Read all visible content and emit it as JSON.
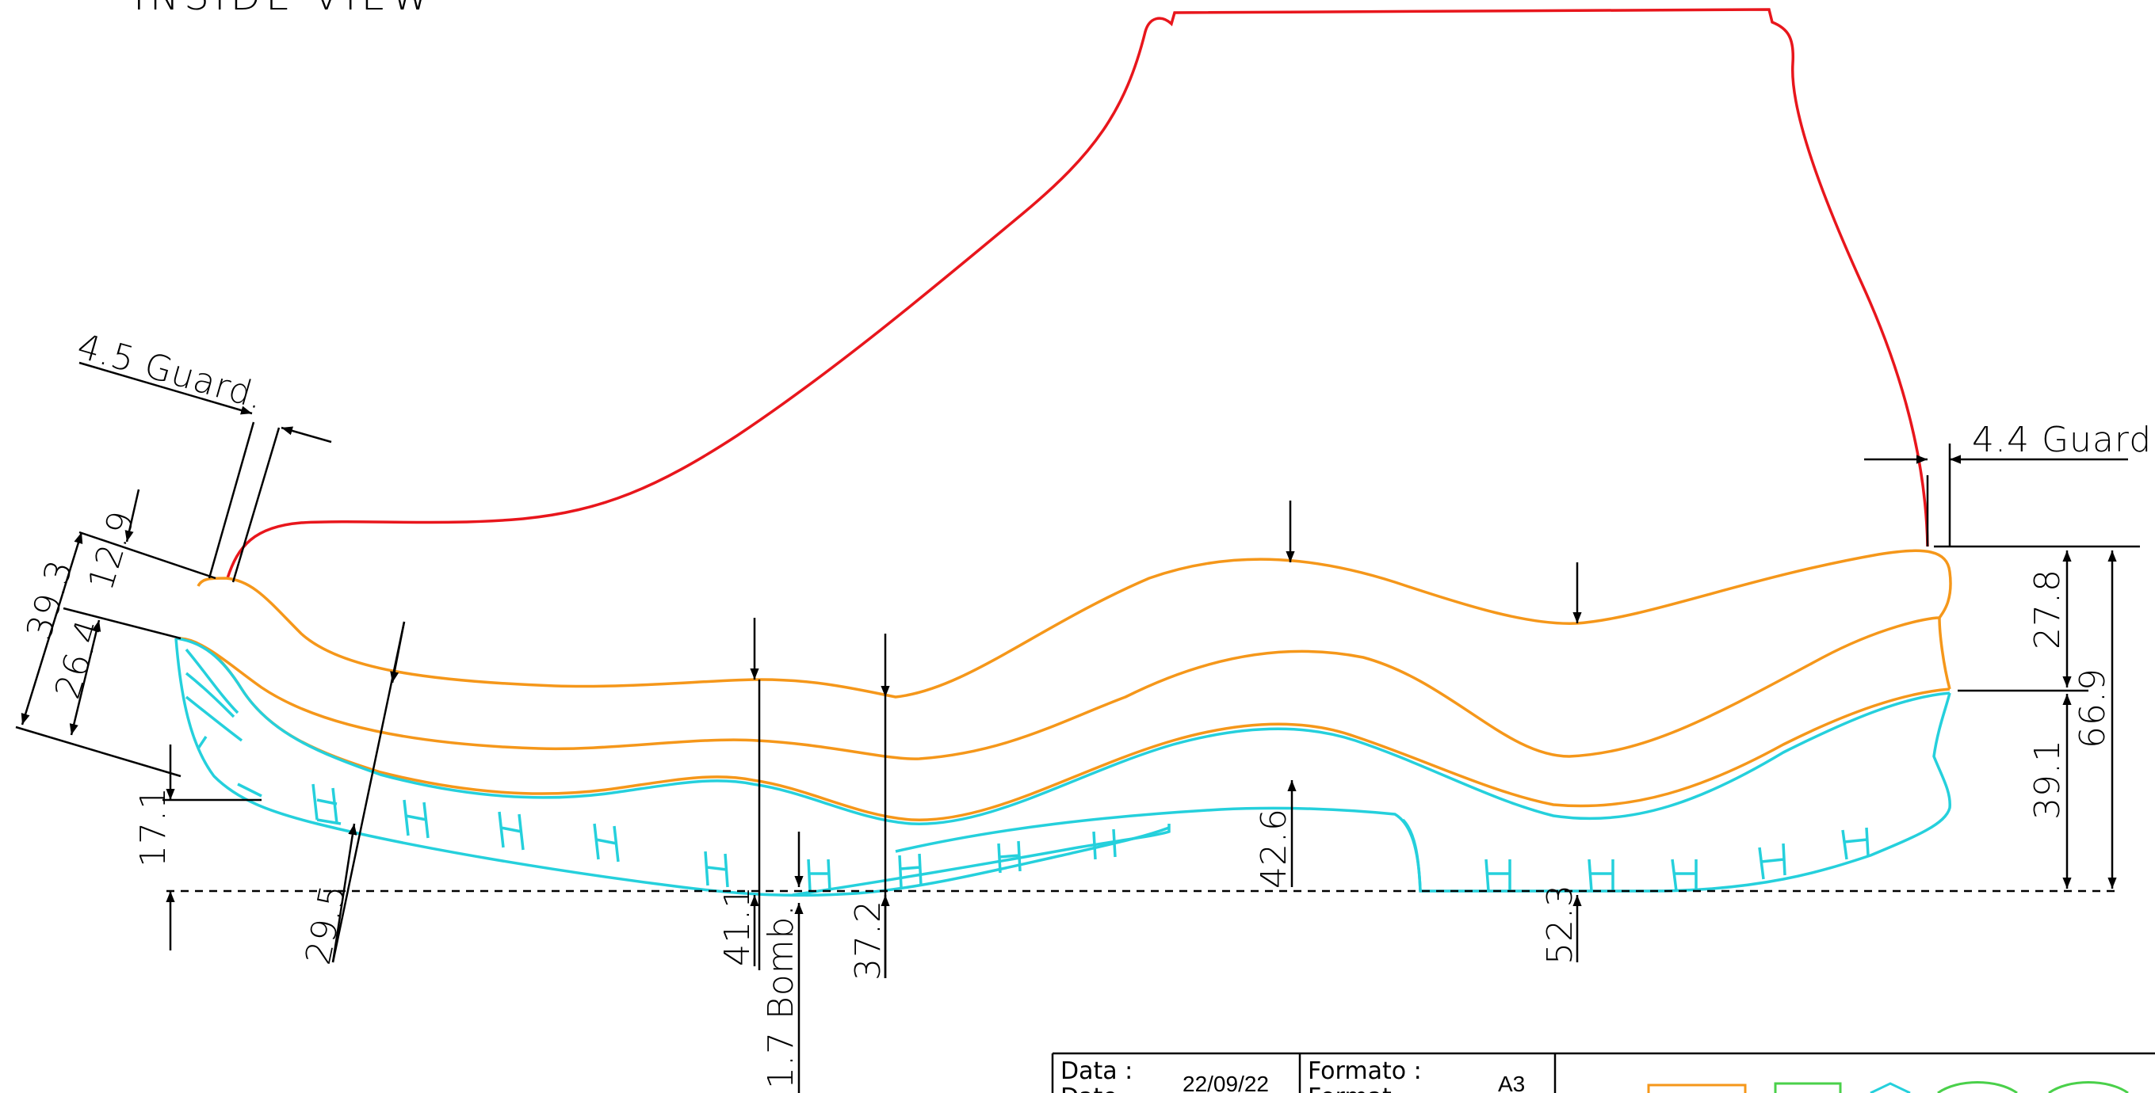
{
  "title": "INSIDE VIEW",
  "colors": {
    "upper": "#e8161c",
    "insole_midsole": "#f5971a",
    "outsole": "#25d0dc",
    "dimension": "#000000"
  },
  "dimensions": {
    "toe_guard": "4.5 Guard.",
    "heel_guard": "4.4 Guard.",
    "toe_total_height": "39.3",
    "toe_upper_height": "12.9",
    "toe_lower_height": "26.4",
    "toe_spring": "17.1",
    "toe_thickness": "29.5",
    "ball_thickness": "41.1",
    "bombatura": "1.7 Bomb.",
    "waist_thickness": "37.2",
    "shank_thickness": "42.6",
    "heel_thickness": "52.3",
    "heel_upper_height": "27.8",
    "heel_lower_height": "39.1",
    "heel_total_height": "66.9"
  },
  "title_block": {
    "date_label_it": "Data :",
    "date_label_en": "Date",
    "date_value": "22/09/22",
    "format_label_it": "Formato :",
    "format_label_en": "Format",
    "format_value": "A3"
  }
}
